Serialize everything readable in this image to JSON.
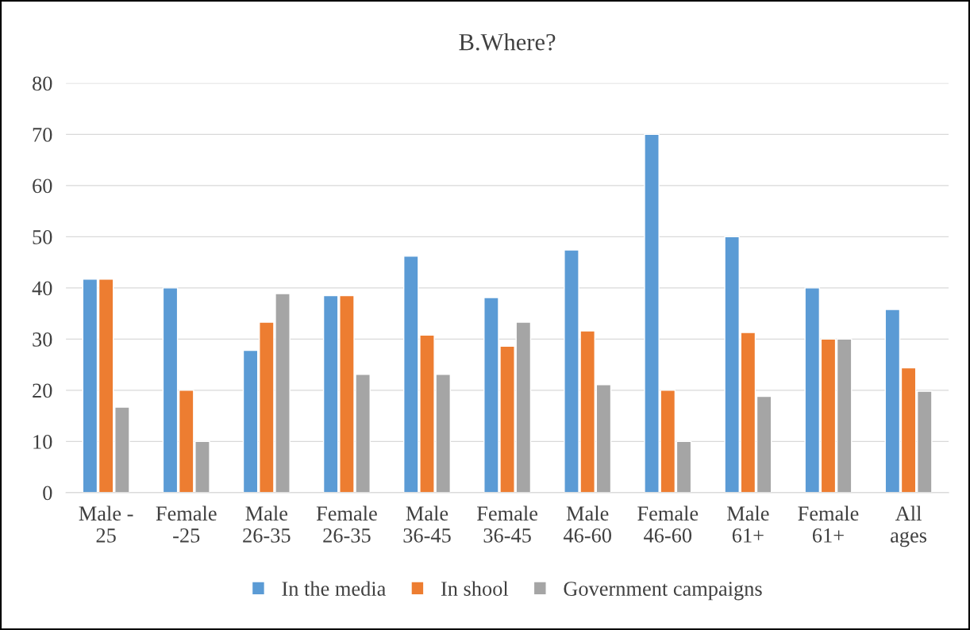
{
  "chart_data": {
    "type": "bar",
    "title": "B.Where?",
    "categories": [
      "Male -\n25",
      "Female\n-25",
      "Male\n26-35",
      "Female\n26-35",
      "Male\n36-45",
      "Female\n36-45",
      "Male\n46-60",
      "Female\n46-60",
      "Male\n61+",
      "Female\n61+",
      "All\nages"
    ],
    "series": [
      {
        "name": "In the media",
        "color": "#5b9bd5",
        "values": [
          41.7,
          40,
          27.8,
          38.5,
          46.2,
          38.1,
          47.4,
          70,
          50,
          40,
          35.8
        ]
      },
      {
        "name": "In shool",
        "color": "#ed7d31",
        "values": [
          41.7,
          20,
          33.3,
          38.5,
          30.8,
          28.6,
          31.6,
          20,
          31.3,
          30,
          24.4
        ]
      },
      {
        "name": "Government campaigns",
        "color": "#a5a5a5",
        "values": [
          16.7,
          10,
          38.9,
          23.1,
          23.1,
          33.3,
          21.1,
          10,
          18.8,
          30,
          19.8
        ]
      }
    ],
    "ylim": [
      0,
      80
    ],
    "yticks": [
      0,
      10,
      20,
      30,
      40,
      50,
      60,
      70,
      80
    ],
    "grid": "y",
    "legend": "bottom"
  }
}
